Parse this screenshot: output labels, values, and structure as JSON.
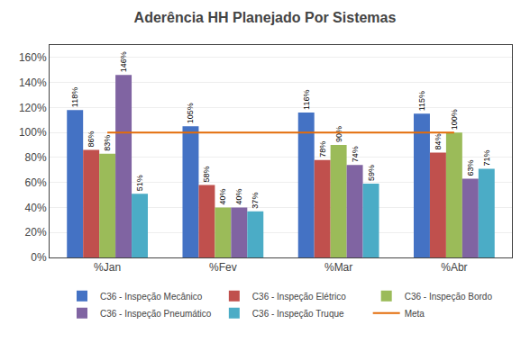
{
  "chart_data": {
    "type": "bar",
    "title": "Aderência HH Planejado Por Sistemas",
    "categories": [
      "%Jan",
      "%Fev",
      "%Mar",
      "%Abr"
    ],
    "series": [
      {
        "name": "C36 - Inspeção Mecânico",
        "color": "#4472C4",
        "values": [
          1.18,
          1.05,
          1.16,
          1.15
        ],
        "value_labels": [
          "118%",
          "105%",
          "116%",
          "115%"
        ]
      },
      {
        "name": "C36 - Inspeção Elétrico",
        "color": "#C0504D",
        "values": [
          0.86,
          0.58,
          0.78,
          0.84
        ],
        "value_labels": [
          "86%",
          "58%",
          "78%",
          "84%"
        ]
      },
      {
        "name": "C36 - Inspeção Bordo",
        "color": "#9BBB59",
        "values": [
          0.83,
          0.4,
          0.9,
          1.0
        ],
        "value_labels": [
          "83%",
          "40%",
          "90%",
          "100%"
        ]
      },
      {
        "name": "C36 - Inspeção Pneumático",
        "color": "#8064A2",
        "values": [
          1.46,
          0.4,
          0.74,
          0.63
        ],
        "value_labels": [
          "146%",
          "40%",
          "74%",
          "63%"
        ]
      },
      {
        "name": "C36 - Inspeção Truque",
        "color": "#4BACC6",
        "values": [
          0.51,
          0.37,
          0.59,
          0.71
        ],
        "value_labels": [
          "51%",
          "37%",
          "59%",
          "71%"
        ]
      },
      {
        "name": "Meta",
        "type": "line",
        "color": "#E36C09",
        "values": [
          1.0,
          1.0,
          1.0,
          1.0
        ]
      }
    ],
    "ylim": [
      0,
      1.7
    ],
    "yticks": [
      {
        "value": 0.0,
        "label": "0%"
      },
      {
        "value": 0.2,
        "label": "20%"
      },
      {
        "value": 0.4,
        "label": "40%"
      },
      {
        "value": 0.6,
        "label": "60%"
      },
      {
        "value": 0.8,
        "label": "80%"
      },
      {
        "value": 1.0,
        "label": "100%"
      },
      {
        "value": 1.2,
        "label": "120%"
      },
      {
        "value": 1.4,
        "label": "140%"
      },
      {
        "value": 1.6,
        "label": "160%"
      }
    ],
    "grid": true,
    "data_labels": true,
    "legend": "bottom"
  }
}
